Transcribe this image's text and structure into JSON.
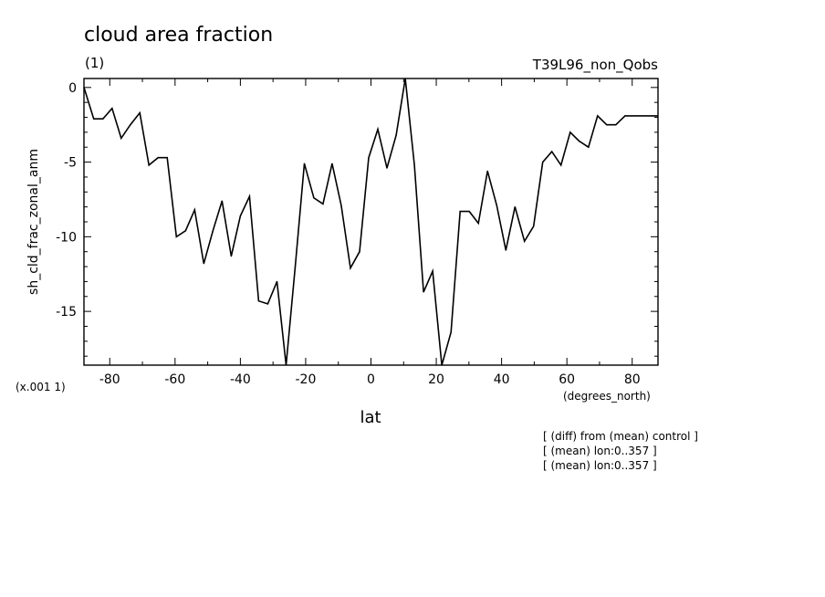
{
  "header": {
    "title": "cloud area fraction",
    "units": "(1)",
    "run": "T39L96_non_Qobs"
  },
  "footer": {
    "scale_note": "(x.001 1)",
    "x_units": "(degrees_north)",
    "notes": [
      "[ (diff) from (mean) control ]",
      "[ (mean) lon:0..357 ]",
      "[ (mean) lon:0..357 ]"
    ]
  },
  "chart_data": {
    "type": "line",
    "title": "cloud area fraction",
    "xlabel": "lat",
    "ylabel": "sh_cld_frac_zonal_anm",
    "xlim": [
      -87.9,
      87.9
    ],
    "ylim": [
      -18.6,
      0.6
    ],
    "x_ticks": [
      -80,
      -60,
      -40,
      -20,
      0,
      20,
      40,
      60,
      80
    ],
    "x_tick_labels": [
      "-80",
      "-60",
      "-40",
      "-20",
      "0",
      "20",
      "40",
      "60",
      "80"
    ],
    "y_ticks": [
      0,
      -5,
      -10,
      -15
    ],
    "y_tick_labels": [
      "0",
      "-5",
      "-10",
      "-15"
    ],
    "grid": false,
    "series": [
      {
        "color": "#000000",
        "x": [
          -87.9,
          -84.9,
          -82.1,
          -79.3,
          -76.5,
          -73.7,
          -70.8,
          -68.0,
          -65.2,
          -62.4,
          -59.6,
          -56.8,
          -54.0,
          -51.2,
          -48.4,
          -45.6,
          -42.8,
          -40.0,
          -37.2,
          -34.4,
          -31.6,
          -28.8,
          -26.0,
          -23.2,
          -20.4,
          -17.5,
          -14.7,
          -11.9,
          -9.1,
          -6.3,
          -3.5,
          -0.7,
          2.1,
          4.9,
          7.7,
          10.5,
          13.3,
          16.1,
          18.9,
          21.7,
          24.5,
          27.3,
          30.1,
          32.9,
          35.7,
          38.5,
          41.3,
          44.1,
          47.0,
          49.8,
          52.6,
          55.4,
          58.2,
          61.0,
          63.8,
          66.6,
          69.4,
          72.2,
          75.0,
          77.8,
          80.7,
          83.5,
          86.3,
          87.9
        ],
        "y": [
          0.0,
          -2.1,
          -2.1,
          -1.4,
          -3.4,
          -2.5,
          -1.7,
          -5.2,
          -4.7,
          -4.7,
          -10.0,
          -9.6,
          -8.2,
          -11.8,
          -9.6,
          -7.6,
          -11.3,
          -8.6,
          -7.3,
          -14.3,
          -14.5,
          -13.0,
          -18.6,
          -12.0,
          -5.1,
          -7.4,
          -7.8,
          -5.1,
          -7.9,
          -12.1,
          -11.0,
          -4.7,
          -2.8,
          -5.4,
          -3.2,
          0.6,
          -5.2,
          -13.7,
          -12.3,
          -18.6,
          -16.4,
          -8.3,
          -8.3,
          -9.1,
          -5.6,
          -7.9,
          -10.9,
          -8.0,
          -10.3,
          -9.3,
          -5.0,
          -4.3,
          -5.2,
          -3.0,
          -3.6,
          -4.0,
          -1.9,
          -2.5,
          -2.5,
          -1.9,
          -1.9,
          -1.9,
          -1.9,
          -1.9
        ]
      }
    ]
  }
}
